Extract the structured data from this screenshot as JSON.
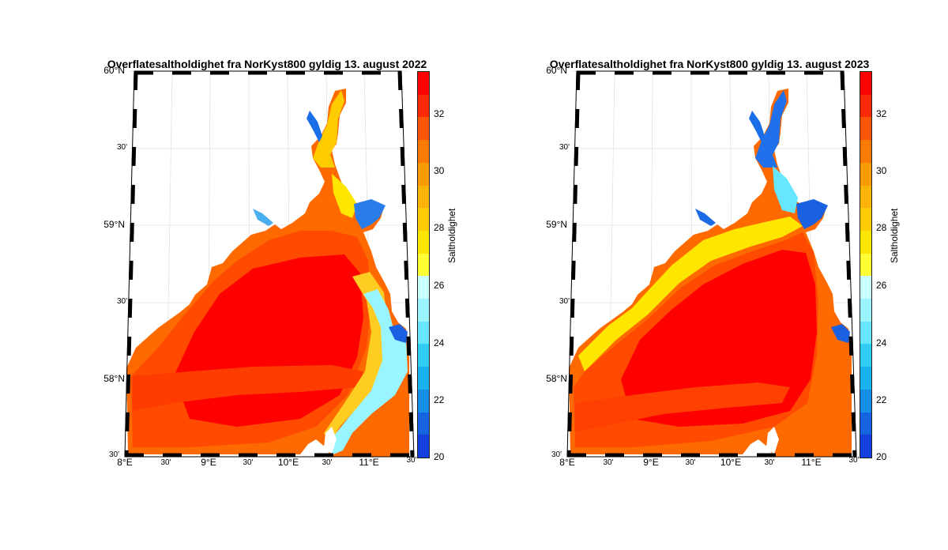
{
  "colorbar": {
    "label": "Saltholdighet",
    "ticks": [
      "32",
      "30",
      "28",
      "26",
      "24",
      "22",
      "20"
    ],
    "range": [
      20,
      33.5
    ],
    "segment_colors": [
      "#fe0000",
      "#ff2a00",
      "#ff5500",
      "#ff7a00",
      "#ff9a00",
      "#ffb400",
      "#ffcc00",
      "#ffe600",
      "#ffff33",
      "#ccffff",
      "#99f5ff",
      "#66e6ff",
      "#33ccf5",
      "#1ab2ee",
      "#1590e6",
      "#1565e0",
      "#1440e0"
    ]
  },
  "axis_labels": {
    "lat": [
      "60°N",
      "30'",
      "59°N",
      "30'",
      "58°N",
      "30'"
    ],
    "lon": [
      "8°E",
      "30'",
      "9°E",
      "30'",
      "10°E",
      "30'",
      "11°E",
      "30'"
    ]
  },
  "maps": [
    {
      "title": "Overflatesaltholdighet fra NorKyst800 gyldig 13. august 2022",
      "variant": "2022"
    },
    {
      "title": "Overflatesaltholdighet fra NorKyst800 gyldig 13. august 2023",
      "variant": "2023"
    }
  ]
}
